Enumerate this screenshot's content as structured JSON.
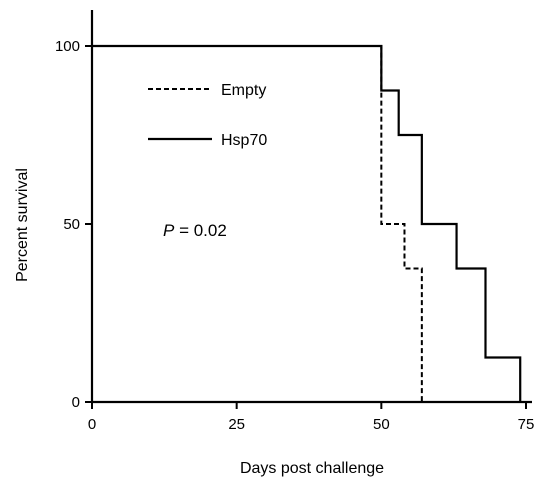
{
  "chart_data": {
    "type": "line",
    "xlabel": "Days post challenge",
    "ylabel": "Percent survival",
    "xlim": [
      0,
      75
    ],
    "ylim": [
      0,
      100
    ],
    "x_ticks": [
      "0",
      "25",
      "50",
      "75"
    ],
    "y_ticks": [
      "0",
      "50",
      "100"
    ],
    "grid": false,
    "legend_position": "top-left",
    "step": true,
    "series": [
      {
        "name": "Empty",
        "style": "dashed",
        "color": "#000000",
        "points": [
          [
            0,
            100
          ],
          [
            50,
            100
          ],
          [
            50,
            50
          ],
          [
            54,
            50
          ],
          [
            54,
            37.5
          ],
          [
            57,
            37.5
          ],
          [
            57,
            0
          ]
        ]
      },
      {
        "name": "Hsp70",
        "style": "solid",
        "color": "#000000",
        "points": [
          [
            0,
            100
          ],
          [
            50,
            100
          ],
          [
            50,
            87.5
          ],
          [
            53,
            87.5
          ],
          [
            53,
            75
          ],
          [
            57,
            75
          ],
          [
            57,
            50
          ],
          [
            63,
            50
          ],
          [
            63,
            37.5
          ],
          [
            68,
            37.5
          ],
          [
            68,
            12.5
          ],
          [
            74,
            12.5
          ],
          [
            74,
            0
          ]
        ]
      }
    ],
    "annotations": [
      {
        "prefix": "P",
        "text": " = 0.02"
      }
    ]
  }
}
